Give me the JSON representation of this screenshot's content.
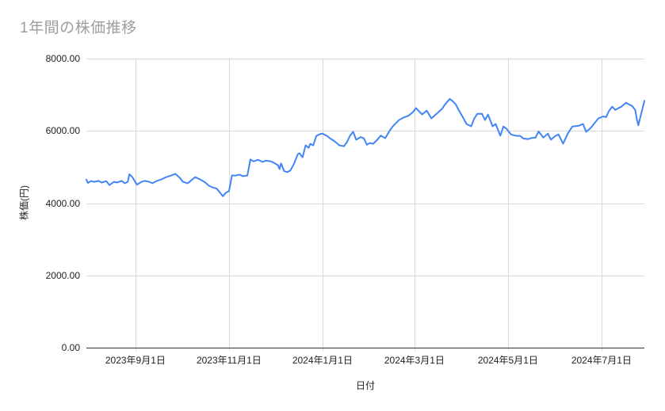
{
  "title": "1年間の株価推移",
  "chart_data": {
    "type": "line",
    "title": "1年間の株価推移",
    "xlabel": "日付",
    "ylabel": "株価(円)",
    "legend": "none",
    "grid": true,
    "colors": {
      "series": "#4285f4",
      "grid": "#d9d9d9",
      "axis_line": "#333333",
      "title_text": "#9e9e9e",
      "tick_text": "#222222"
    },
    "ylim": [
      0,
      8000
    ],
    "y_ticks": [
      {
        "value": 0,
        "label": "0.00"
      },
      {
        "value": 2000,
        "label": "2000.00"
      },
      {
        "value": 4000,
        "label": "4000.00"
      },
      {
        "value": 6000,
        "label": "6000.00"
      },
      {
        "value": 8000,
        "label": "8000.00"
      }
    ],
    "x_domain": [
      "2023-07-31",
      "2024-07-29"
    ],
    "x_ticks": [
      {
        "date": "2023-09-01",
        "label": "2023年9月1日"
      },
      {
        "date": "2023-11-01",
        "label": "2023年11月1日"
      },
      {
        "date": "2024-01-01",
        "label": "2024年1月1日"
      },
      {
        "date": "2024-03-01",
        "label": "2024年3月1日"
      },
      {
        "date": "2024-05-01",
        "label": "2024年5月1日"
      },
      {
        "date": "2024-07-01",
        "label": "2024年7月1日"
      }
    ],
    "series_name": "株価",
    "points": [
      [
        "2023-07-31",
        4650
      ],
      [
        "2023-08-01",
        4560
      ],
      [
        "2023-08-03",
        4610
      ],
      [
        "2023-08-05",
        4590
      ],
      [
        "2023-08-08",
        4615
      ],
      [
        "2023-08-10",
        4570
      ],
      [
        "2023-08-13",
        4610
      ],
      [
        "2023-08-15",
        4500
      ],
      [
        "2023-08-18",
        4590
      ],
      [
        "2023-08-20",
        4570
      ],
      [
        "2023-08-23",
        4615
      ],
      [
        "2023-08-25",
        4550
      ],
      [
        "2023-08-27",
        4590
      ],
      [
        "2023-08-28",
        4800
      ],
      [
        "2023-08-30",
        4720
      ],
      [
        "2023-09-02",
        4510
      ],
      [
        "2023-09-05",
        4590
      ],
      [
        "2023-09-07",
        4615
      ],
      [
        "2023-09-10",
        4590
      ],
      [
        "2023-09-12",
        4550
      ],
      [
        "2023-09-15",
        4615
      ],
      [
        "2023-09-18",
        4660
      ],
      [
        "2023-09-21",
        4720
      ],
      [
        "2023-09-24",
        4760
      ],
      [
        "2023-09-27",
        4810
      ],
      [
        "2023-09-30",
        4700
      ],
      [
        "2023-10-02",
        4590
      ],
      [
        "2023-10-05",
        4550
      ],
      [
        "2023-10-07",
        4615
      ],
      [
        "2023-10-10",
        4720
      ],
      [
        "2023-10-13",
        4660
      ],
      [
        "2023-10-16",
        4590
      ],
      [
        "2023-10-19",
        4480
      ],
      [
        "2023-10-21",
        4440
      ],
      [
        "2023-10-24",
        4400
      ],
      [
        "2023-10-26",
        4300
      ],
      [
        "2023-10-28",
        4190
      ],
      [
        "2023-10-30",
        4290
      ],
      [
        "2023-11-01",
        4330
      ],
      [
        "2023-11-03",
        4770
      ],
      [
        "2023-11-05",
        4760
      ],
      [
        "2023-11-08",
        4790
      ],
      [
        "2023-11-10",
        4745
      ],
      [
        "2023-11-13",
        4765
      ],
      [
        "2023-11-15",
        5210
      ],
      [
        "2023-11-17",
        5155
      ],
      [
        "2023-11-20",
        5200
      ],
      [
        "2023-11-23",
        5140
      ],
      [
        "2023-11-25",
        5175
      ],
      [
        "2023-11-28",
        5160
      ],
      [
        "2023-11-30",
        5125
      ],
      [
        "2023-12-03",
        5050
      ],
      [
        "2023-12-04",
        4940
      ],
      [
        "2023-12-05",
        5100
      ],
      [
        "2023-12-07",
        4885
      ],
      [
        "2023-12-09",
        4860
      ],
      [
        "2023-12-11",
        4900
      ],
      [
        "2023-12-13",
        5050
      ],
      [
        "2023-12-16",
        5360
      ],
      [
        "2023-12-17",
        5380
      ],
      [
        "2023-12-19",
        5270
      ],
      [
        "2023-12-21",
        5600
      ],
      [
        "2023-12-23",
        5530
      ],
      [
        "2023-12-24",
        5640
      ],
      [
        "2023-12-26",
        5600
      ],
      [
        "2023-12-28",
        5860
      ],
      [
        "2023-12-30",
        5905
      ],
      [
        "2024-01-01",
        5925
      ],
      [
        "2024-01-04",
        5860
      ],
      [
        "2024-01-06",
        5790
      ],
      [
        "2024-01-09",
        5710
      ],
      [
        "2024-01-12",
        5600
      ],
      [
        "2024-01-15",
        5575
      ],
      [
        "2024-01-17",
        5690
      ],
      [
        "2024-01-19",
        5870
      ],
      [
        "2024-01-21",
        5975
      ],
      [
        "2024-01-23",
        5755
      ],
      [
        "2024-01-26",
        5830
      ],
      [
        "2024-01-28",
        5790
      ],
      [
        "2024-01-30",
        5615
      ],
      [
        "2024-02-01",
        5665
      ],
      [
        "2024-02-03",
        5640
      ],
      [
        "2024-02-06",
        5765
      ],
      [
        "2024-02-08",
        5870
      ],
      [
        "2024-02-11",
        5800
      ],
      [
        "2024-02-14",
        6015
      ],
      [
        "2024-02-16",
        6130
      ],
      [
        "2024-02-20",
        6300
      ],
      [
        "2024-02-22",
        6350
      ],
      [
        "2024-02-24",
        6390
      ],
      [
        "2024-02-26",
        6415
      ],
      [
        "2024-02-29",
        6520
      ],
      [
        "2024-03-02",
        6630
      ],
      [
        "2024-03-04",
        6540
      ],
      [
        "2024-03-06",
        6455
      ],
      [
        "2024-03-09",
        6560
      ],
      [
        "2024-03-12",
        6345
      ],
      [
        "2024-03-14",
        6420
      ],
      [
        "2024-03-16",
        6495
      ],
      [
        "2024-03-19",
        6610
      ],
      [
        "2024-03-21",
        6735
      ],
      [
        "2024-03-24",
        6885
      ],
      [
        "2024-03-26",
        6820
      ],
      [
        "2024-03-28",
        6730
      ],
      [
        "2024-03-30",
        6565
      ],
      [
        "2024-04-02",
        6345
      ],
      [
        "2024-04-04",
        6190
      ],
      [
        "2024-04-07",
        6125
      ],
      [
        "2024-04-09",
        6340
      ],
      [
        "2024-04-11",
        6470
      ],
      [
        "2024-04-14",
        6475
      ],
      [
        "2024-04-16",
        6300
      ],
      [
        "2024-04-18",
        6450
      ],
      [
        "2024-04-21",
        6125
      ],
      [
        "2024-04-23",
        6190
      ],
      [
        "2024-04-26",
        5865
      ],
      [
        "2024-04-28",
        6120
      ],
      [
        "2024-04-30",
        6060
      ],
      [
        "2024-05-03",
        5900
      ],
      [
        "2024-05-06",
        5865
      ],
      [
        "2024-05-09",
        5860
      ],
      [
        "2024-05-11",
        5790
      ],
      [
        "2024-05-14",
        5770
      ],
      [
        "2024-05-16",
        5800
      ],
      [
        "2024-05-19",
        5815
      ],
      [
        "2024-05-21",
        5985
      ],
      [
        "2024-05-24",
        5815
      ],
      [
        "2024-05-27",
        5925
      ],
      [
        "2024-05-29",
        5755
      ],
      [
        "2024-06-01",
        5860
      ],
      [
        "2024-06-03",
        5900
      ],
      [
        "2024-06-06",
        5645
      ],
      [
        "2024-06-09",
        5925
      ],
      [
        "2024-06-12",
        6120
      ],
      [
        "2024-06-16",
        6140
      ],
      [
        "2024-06-19",
        6190
      ],
      [
        "2024-06-21",
        5975
      ],
      [
        "2024-06-24",
        6080
      ],
      [
        "2024-06-26",
        6190
      ],
      [
        "2024-06-29",
        6345
      ],
      [
        "2024-07-02",
        6400
      ],
      [
        "2024-07-04",
        6380
      ],
      [
        "2024-07-06",
        6560
      ],
      [
        "2024-07-08",
        6670
      ],
      [
        "2024-07-10",
        6580
      ],
      [
        "2024-07-12",
        6625
      ],
      [
        "2024-07-14",
        6670
      ],
      [
        "2024-07-17",
        6780
      ],
      [
        "2024-07-19",
        6730
      ],
      [
        "2024-07-21",
        6690
      ],
      [
        "2024-07-23",
        6580
      ],
      [
        "2024-07-24",
        6350
      ],
      [
        "2024-07-25",
        6155
      ],
      [
        "2024-07-26",
        6320
      ],
      [
        "2024-07-29",
        6830
      ]
    ]
  }
}
